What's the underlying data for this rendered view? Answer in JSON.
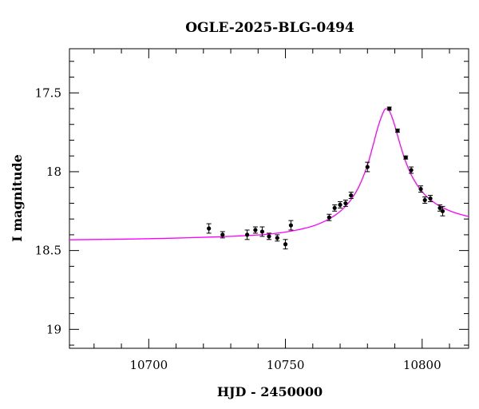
{
  "chart_data": {
    "type": "scatter",
    "title": "OGLE-2025-BLG-0494",
    "xlabel": "HJD - 2450000",
    "ylabel": "I magnitude",
    "xlim": [
      10671,
      10817
    ],
    "ylim": [
      19.12,
      17.22
    ],
    "y_inverted": true,
    "grid": false,
    "legend": "none",
    "x_ticks": [
      10700,
      10750,
      10800
    ],
    "x_tick_labels": [
      "10700",
      "10750",
      "10800"
    ],
    "x_minor_step": 10,
    "y_ticks": [
      17.5,
      18,
      18.5,
      19
    ],
    "y_tick_labels": [
      "17.5",
      "18",
      "18.5",
      "19"
    ],
    "y_minor_step": 0.1,
    "colors": {
      "model": "#ff00ff",
      "points": "#000000"
    },
    "series": [
      {
        "kind": "points",
        "x": [
          10722.0,
          10727.0,
          10736.0,
          10739.0,
          10741.5,
          10744.0,
          10747.0,
          10750.0,
          10752.0,
          10766.0,
          10768.0,
          10770.0,
          10772.0,
          10774.0,
          10780.0,
          10788.0,
          10791.0,
          10794.0,
          10796.0,
          10799.5,
          10801.0,
          10803.0,
          10806.5,
          10807.5
        ],
        "y": [
          18.36,
          18.4,
          18.4,
          18.37,
          18.38,
          18.41,
          18.42,
          18.46,
          18.34,
          18.29,
          18.23,
          18.21,
          18.2,
          18.15,
          17.97,
          17.6,
          17.74,
          17.91,
          17.99,
          18.11,
          18.18,
          18.17,
          18.23,
          18.25
        ],
        "err": [
          0.03,
          0.02,
          0.03,
          0.02,
          0.03,
          0.02,
          0.02,
          0.03,
          0.03,
          0.02,
          0.02,
          0.02,
          0.02,
          0.02,
          0.03,
          0.01,
          0.01,
          0.01,
          0.02,
          0.02,
          0.02,
          0.02,
          0.02,
          0.03
        ]
      },
      {
        "kind": "model",
        "x": [
          10671,
          10680,
          10690,
          10700,
          10710,
          10720,
          10730,
          10740,
          10745,
          10750,
          10755,
          10760,
          10765,
          10768,
          10771,
          10774,
          10777,
          10780,
          10782,
          10784,
          10786,
          10787,
          10788,
          10789,
          10790,
          10792,
          10794,
          10796,
          10798,
          10800,
          10802,
          10805,
          10808,
          10811,
          10814,
          10817
        ],
        "y": [
          18.432,
          18.43,
          18.428,
          18.425,
          18.421,
          18.416,
          18.41,
          18.401,
          18.394,
          18.383,
          18.367,
          18.345,
          18.309,
          18.278,
          18.236,
          18.177,
          18.09,
          17.958,
          17.836,
          17.708,
          17.615,
          17.601,
          17.615,
          17.655,
          17.708,
          17.83,
          17.937,
          18.019,
          18.08,
          18.127,
          18.163,
          18.203,
          18.232,
          18.254,
          18.271,
          18.284
        ]
      }
    ]
  }
}
